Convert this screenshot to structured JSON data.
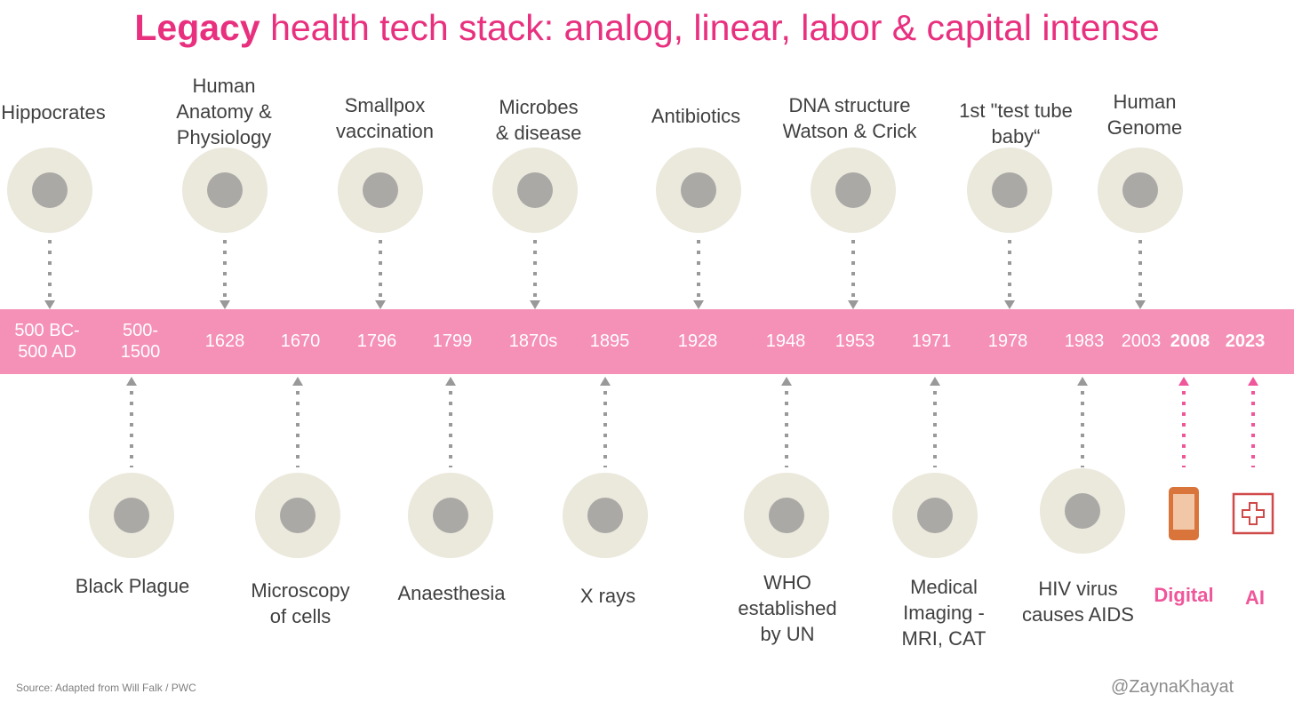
{
  "title": {
    "bold": "Legacy",
    "rest": " health tech stack: analog, linear, labor & capital intense"
  },
  "years": [
    "500 BC-\n500 AD",
    "500-\n1500",
    "1628",
    "1670",
    "1796",
    "1799",
    "1870s",
    "1895",
    "1928",
    "1948",
    "1953",
    "1971",
    "1978",
    "1983",
    "2003",
    "2008",
    "2023"
  ],
  "top_events": [
    {
      "label": "Hippocrates"
    },
    {
      "label": "Human\nAnatomy &\nPhysiology"
    },
    {
      "label": "Smallpox\nvaccination"
    },
    {
      "label": "Microbes\n& disease"
    },
    {
      "label": "Antibiotics"
    },
    {
      "label": "DNA structure\nWatson & Crick"
    },
    {
      "label": "1st \"test tube\nbaby“"
    },
    {
      "label": "Human\nGenome"
    }
  ],
  "bottom_events": [
    {
      "label": "Black Plague"
    },
    {
      "label": "Microscopy\nof cells"
    },
    {
      "label": "Anaesthesia"
    },
    {
      "label": "X rays"
    },
    {
      "label": "WHO\nestablished\nby UN"
    },
    {
      "label": "Medical\nImaging -\nMRI, CAT"
    },
    {
      "label": "HIV virus\ncauses AIDS"
    },
    {
      "label": "Digital"
    },
    {
      "label": "AI"
    }
  ],
  "footer": {
    "source": "Source: Adapted from Will Falk  / PWC",
    "handle": "@ZaynaKhayat"
  }
}
